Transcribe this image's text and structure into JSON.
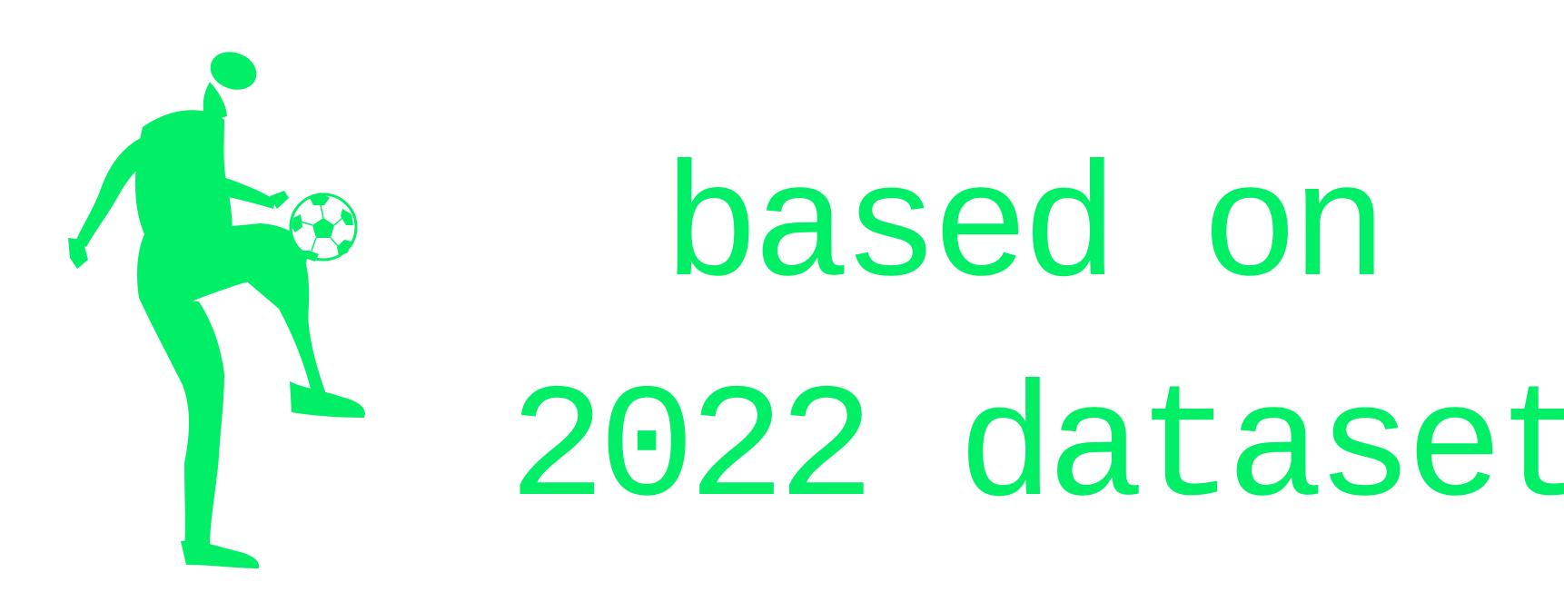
{
  "colors": {
    "accent": "#00ef66",
    "background": "#ffffff"
  },
  "graphic": {
    "player_icon": "soccer-player-juggling-icon",
    "ball_icon": "soccer-ball-icon"
  },
  "headline": {
    "line1": "based on",
    "line2": "2022 dataset"
  }
}
